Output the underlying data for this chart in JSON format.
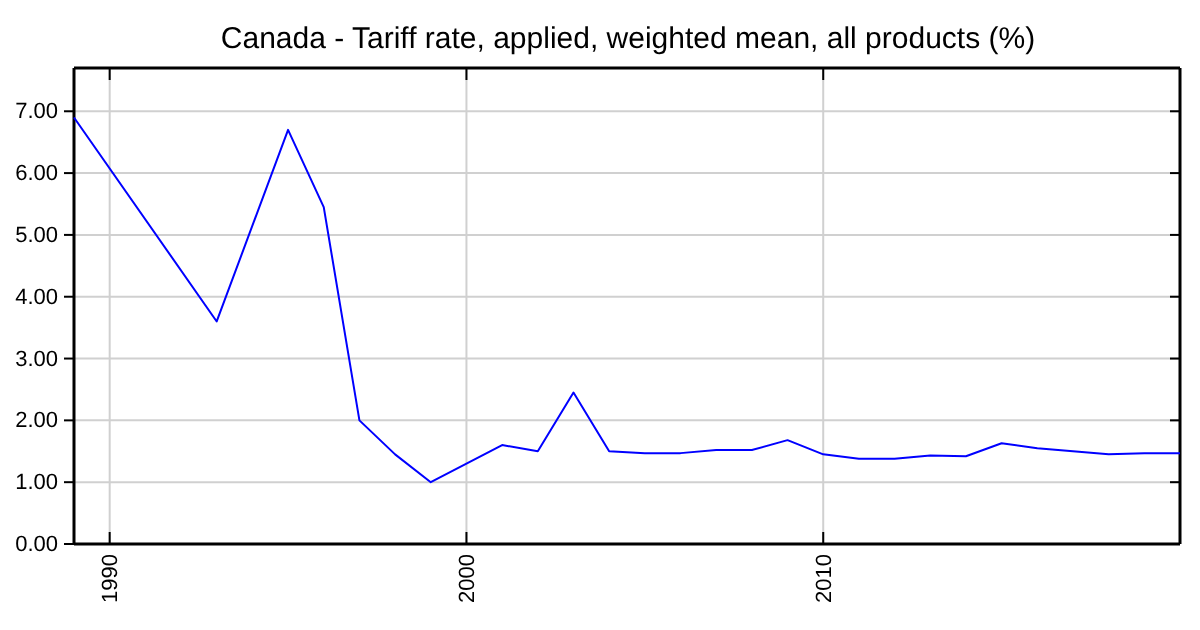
{
  "chart_data": {
    "type": "line",
    "title": "Canada - Tariff rate, applied, weighted mean, all products (%)",
    "x": [
      1989,
      1993,
      1995,
      1996,
      1997,
      1998,
      1999,
      2001,
      2002,
      2003,
      2004,
      2005,
      2006,
      2007,
      2008,
      2009,
      2010,
      2011,
      2012,
      2013,
      2014,
      2015,
      2016,
      2017,
      2018,
      2019,
      2020
    ],
    "series": [
      {
        "color": "#0000ff",
        "values": [
          6.9,
          3.6,
          6.7,
          5.45,
          2.0,
          1.45,
          1.0,
          1.6,
          1.5,
          2.45,
          1.5,
          1.47,
          1.47,
          1.52,
          1.52,
          1.68,
          1.45,
          1.38,
          1.38,
          1.43,
          1.42,
          1.63,
          1.55,
          1.5,
          1.45,
          1.47,
          1.47
        ]
      }
    ],
    "xlim": [
      1989,
      2020
    ],
    "xticks": [
      1990,
      2000,
      2010
    ],
    "ylim": [
      0,
      7.7
    ],
    "yticks": [
      {
        "value": 0,
        "label": "0.00"
      },
      {
        "value": 1,
        "label": "1.00"
      },
      {
        "value": 2,
        "label": "2.00"
      },
      {
        "value": 3,
        "label": "3.00"
      },
      {
        "value": 4,
        "label": "4.00"
      },
      {
        "value": 5,
        "label": "5.00"
      },
      {
        "value": 6,
        "label": "6.00"
      },
      {
        "value": 7,
        "label": "7.00"
      }
    ],
    "grid": true,
    "marker": "none",
    "line_style": "solid"
  }
}
